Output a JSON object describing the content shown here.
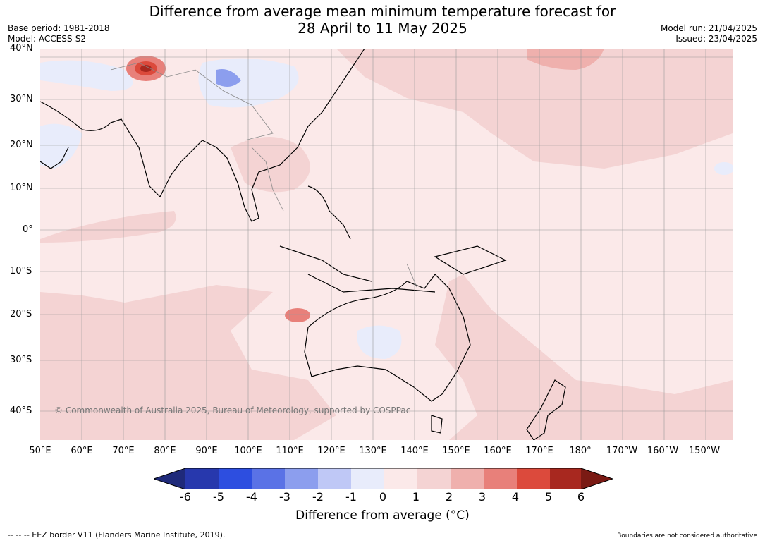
{
  "title": {
    "line1": "Difference from average mean minimum temperature forecast for",
    "line2": "28 April to 11 May 2025"
  },
  "meta_left": {
    "base_period": "Base period: 1981-2018",
    "model": "Model: ACCESS-S2"
  },
  "meta_right": {
    "model_run": "Model run: 21/04/2025",
    "issued": "Issued: 23/04/2025"
  },
  "lat_labels": [
    "40°N",
    "30°N",
    "20°N",
    "10°N",
    "0°",
    "10°S",
    "20°S",
    "30°S",
    "40°S"
  ],
  "lon_labels": [
    "50°E",
    "60°E",
    "70°E",
    "80°E",
    "90°E",
    "100°E",
    "110°E",
    "120°E",
    "130°E",
    "140°E",
    "150°E",
    "160°E",
    "170°E",
    "180°",
    "170°W",
    "160°W",
    "150°W"
  ],
  "copyright": "© Commonwealth of Australia 2025, Bureau of Meteorology, supported by COSPPac",
  "colorbar": {
    "tick_labels": [
      "-6",
      "-5",
      "-4",
      "-3",
      "-2",
      "-1",
      "0",
      "1",
      "2",
      "3",
      "4",
      "5",
      "6"
    ],
    "colors": [
      "#1f2a7a",
      "#2738ad",
      "#2d4ee0",
      "#5a72e6",
      "#8c9eee",
      "#bfc8f6",
      "#e8ecfb",
      "#fbe9e9",
      "#f4d3d3",
      "#efb0ad",
      "#e8807a",
      "#dc4a3c",
      "#a8281f",
      "#7a1a14"
    ],
    "title": "Difference from average (°C)"
  },
  "footer": {
    "eez": "--  --  -- EEZ border V11 (Flanders Marine Institute, 2019).",
    "boundaries": "Boundaries are not considered authoritative"
  }
}
